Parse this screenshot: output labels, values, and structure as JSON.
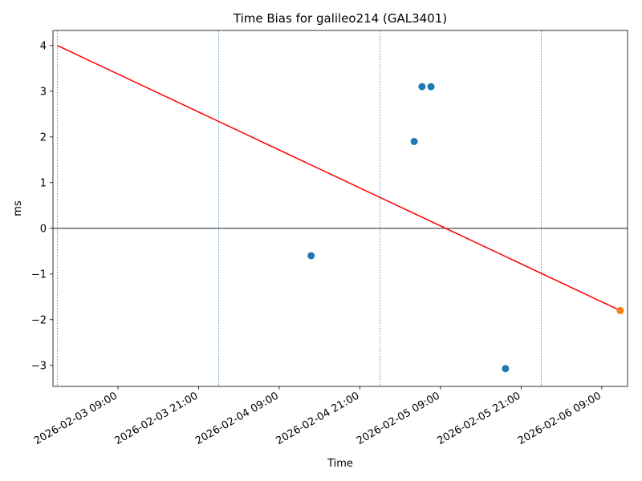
{
  "chart_data": {
    "type": "scatter",
    "title": "Time Bias for galileo214 (GAL3401)",
    "x_label": "Time",
    "y_label": "ms",
    "xlim": [
      "2026-02-02 23:20",
      "2026-02-06 12:50"
    ],
    "xticks": [
      "2026-02-03 09:00",
      "2026-02-03 21:00",
      "2026-02-04 09:00",
      "2026-02-04 21:00",
      "2026-02-05 09:00",
      "2026-02-05 21:00",
      "2026-02-06 09:00"
    ],
    "ylim": [
      -3.46,
      4.33
    ],
    "yticks": [
      {
        "value": -3,
        "label": "−3"
      },
      {
        "value": -2,
        "label": "−2"
      },
      {
        "value": -1,
        "label": "−1"
      },
      0,
      1,
      2,
      3,
      4
    ],
    "hline": 0,
    "vlines": [
      "2026-02-03 00:00",
      "2026-02-04 00:00",
      "2026-02-05 00:00",
      "2026-02-06 00:00"
    ],
    "series": [
      {
        "kind": "points",
        "color": "#1f77b4",
        "x": [
          "2026-02-04 13:45",
          "2026-02-05 05:05",
          "2026-02-05 06:15",
          "2026-02-05 07:35",
          "2026-02-05 18:40"
        ],
        "values": [
          -0.6,
          1.9,
          3.1,
          3.1,
          -3.07
        ]
      },
      {
        "kind": "line",
        "color": "#ff0000",
        "x": [
          "2026-02-03 00:00",
          "2026-02-06 11:45"
        ],
        "values": [
          4.0,
          -1.8
        ]
      },
      {
        "kind": "points",
        "color": "#ff7f0e",
        "x": [
          "2026-02-06 11:45"
        ],
        "values": [
          -1.8
        ]
      }
    ]
  }
}
